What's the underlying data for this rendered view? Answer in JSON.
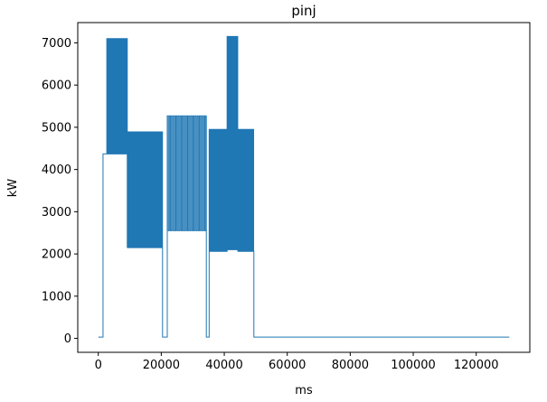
{
  "chart_data": {
    "type": "line",
    "title": "pinj",
    "xlabel": "ms",
    "ylabel": "kW",
    "xlim": [
      -6525,
      137025
    ],
    "ylim": [
      -330,
      7480
    ],
    "xticks": [
      0,
      20000,
      40000,
      60000,
      80000,
      100000,
      120000
    ],
    "yticks": [
      0,
      1000,
      2000,
      3000,
      4000,
      5000,
      6000,
      7000
    ],
    "line_color": "#1f77b4",
    "background_color": "#ffffff",
    "grid": false,
    "legend": "none",
    "series_name": "pinj",
    "segments": [
      {
        "t0": 0,
        "t1": 1500,
        "low": 30,
        "high": 30,
        "period": 0
      },
      {
        "t0": 1500,
        "t1": 2700,
        "low": 4370,
        "high": 4370,
        "period": 0
      },
      {
        "t0": 2700,
        "t1": 9200,
        "low": 4370,
        "high": 7100,
        "period": 150
      },
      {
        "t0": 9200,
        "t1": 20400,
        "low": 2150,
        "high": 4890,
        "period": 150
      },
      {
        "t0": 20400,
        "t1": 21900,
        "low": 30,
        "high": 30,
        "period": 0
      },
      {
        "t0": 21900,
        "t1": 34300,
        "low": 2550,
        "high": 5270,
        "period": 680
      },
      {
        "t0": 34300,
        "t1": 35200,
        "low": 30,
        "high": 30,
        "period": 0
      },
      {
        "t0": 35200,
        "t1": 40900,
        "low": 2060,
        "high": 4950,
        "period": 150
      },
      {
        "t0": 40900,
        "t1": 44300,
        "low": 2100,
        "high": 7150,
        "period": 150
      },
      {
        "t0": 44300,
        "t1": 49400,
        "low": 2060,
        "high": 4950,
        "period": 150
      },
      {
        "t0": 49400,
        "t1": 130500,
        "low": 30,
        "high": 30,
        "period": 0
      }
    ]
  }
}
